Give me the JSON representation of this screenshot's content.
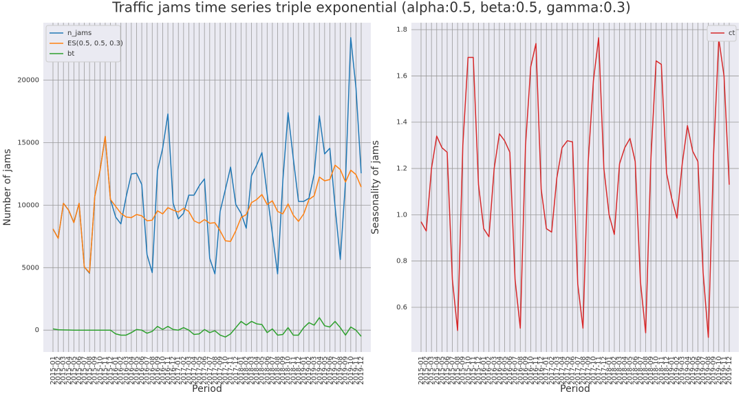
{
  "title": "Traffic jams time series triple exponential (alpha:0.5, beta:0.5, gamma:0.3)",
  "chart_data": [
    {
      "type": "line",
      "xlabel": "Period",
      "ylabel": "Number of jams",
      "legend": "upper left",
      "grid": true,
      "categories": [
        "2015-01",
        "2015-02",
        "2015-03",
        "2015-04",
        "2015-05",
        "2015-06",
        "2015-07",
        "2015-08",
        "2015-09",
        "2015-10",
        "2015-11",
        "2015-12",
        "2016-01",
        "2016-02",
        "2016-03",
        "2016-04",
        "2016-05",
        "2016-06",
        "2016-07",
        "2016-08",
        "2016-09",
        "2016-10",
        "2016-11",
        "2016-12",
        "2017-01",
        "2017-02",
        "2017-03",
        "2017-04",
        "2017-05",
        "2017-06",
        "2017-07",
        "2017-08",
        "2017-09",
        "2017-10",
        "2017-11",
        "2017-12",
        "2018-01",
        "2018-02",
        "2018-03",
        "2018-04",
        "2018-05",
        "2018-06",
        "2018-07",
        "2018-08",
        "2018-09",
        "2018-10",
        "2018-11",
        "2018-12",
        "2019-01",
        "2019-02",
        "2019-03",
        "2019-04",
        "2019-05",
        "2019-06",
        "2019-07",
        "2019-08",
        "2019-09",
        "2019-10",
        "2019-11",
        "2019-12"
      ],
      "ylim": [
        -1750,
        24600
      ],
      "yticks": [
        0,
        5000,
        10000,
        15000,
        20000
      ],
      "series": [
        {
          "name": "n_jams",
          "color": "#1f77b4",
          "values": [
            8100,
            7350,
            10150,
            9600,
            8600,
            10150,
            5050,
            4550,
            10700,
            12750,
            15500,
            10450,
            9050,
            8500,
            10650,
            12500,
            12550,
            11650,
            6050,
            4600,
            12750,
            14550,
            17300,
            10150,
            8900,
            9350,
            10800,
            10800,
            11550,
            12100,
            5750,
            4500,
            9500,
            11250,
            13050,
            10050,
            9350,
            8150,
            12350,
            13200,
            14200,
            10900,
            7700,
            4500,
            11950,
            17400,
            13750,
            10300,
            10300,
            10550,
            12500,
            17150,
            14100,
            14550,
            9900,
            5650,
            11900,
            23400,
            19400,
            12550
          ]
        },
        {
          "name": "ES(0.5, 0.5, 0.3)",
          "color": "#ff7f0e",
          "values": [
            8100,
            7350,
            10150,
            9600,
            8600,
            10150,
            5050,
            4600,
            10700,
            12750,
            15500,
            10450,
            9900,
            9350,
            9050,
            9000,
            9250,
            9150,
            8750,
            8800,
            9550,
            9300,
            9800,
            9600,
            9450,
            9750,
            9500,
            8750,
            8550,
            8850,
            8550,
            8600,
            7950,
            7150,
            7100,
            7950,
            9000,
            9250,
            10200,
            10450,
            10850,
            10050,
            10350,
            9500,
            9300,
            10100,
            9200,
            8700,
            9300,
            10450,
            10750,
            12250,
            11950,
            12050,
            13200,
            12850,
            11850,
            12800,
            12450,
            11450
          ]
        },
        {
          "name": "bt",
          "color": "#2ca02c",
          "values": [
            100,
            30,
            20,
            10,
            0,
            0,
            0,
            0,
            0,
            0,
            0,
            0,
            -300,
            -400,
            -400,
            -200,
            50,
            0,
            -250,
            -100,
            300,
            50,
            300,
            50,
            0,
            200,
            0,
            -350,
            -300,
            50,
            -200,
            -50,
            -400,
            -550,
            -300,
            200,
            700,
            400,
            700,
            500,
            450,
            -200,
            100,
            -400,
            -350,
            200,
            -400,
            -400,
            200,
            600,
            400,
            1000,
            350,
            250,
            700,
            200,
            -400,
            250,
            0,
            -500
          ]
        }
      ]
    },
    {
      "type": "line",
      "xlabel": "Period",
      "ylabel": "Seasonality of jams",
      "legend": "upper right",
      "grid": true,
      "categories": [
        "2015-01",
        "2015-02",
        "2015-03",
        "2015-04",
        "2015-05",
        "2015-06",
        "2015-07",
        "2015-08",
        "2015-09",
        "2015-10",
        "2015-11",
        "2015-12",
        "2016-01",
        "2016-02",
        "2016-03",
        "2016-04",
        "2016-05",
        "2016-06",
        "2016-07",
        "2016-08",
        "2016-09",
        "2016-10",
        "2016-11",
        "2016-12",
        "2017-01",
        "2017-02",
        "2017-03",
        "2017-04",
        "2017-05",
        "2017-06",
        "2017-07",
        "2017-08",
        "2017-09",
        "2017-10",
        "2017-11",
        "2017-12",
        "2018-01",
        "2018-02",
        "2018-03",
        "2018-04",
        "2018-05",
        "2018-06",
        "2018-07",
        "2018-08",
        "2018-09",
        "2018-10",
        "2018-11",
        "2018-12",
        "2019-01",
        "2019-02",
        "2019-03",
        "2019-04",
        "2019-05",
        "2019-06",
        "2019-07",
        "2019-08",
        "2019-09",
        "2019-10",
        "2019-11",
        "2019-12"
      ],
      "ylim": [
        0.407,
        1.83
      ],
      "yticks": [
        0.6,
        0.8,
        {
          "value": 1,
          "label": "1.0"
        },
        1.2,
        1.4,
        1.6,
        1.8
      ],
      "series": [
        {
          "name": "ct",
          "color": "#d62728",
          "values": [
            0.97,
            0.93,
            1.2,
            1.34,
            1.29,
            1.27,
            0.72,
            0.5,
            1.3,
            1.68,
            1.68,
            1.13,
            0.94,
            0.905,
            1.2,
            1.35,
            1.32,
            1.27,
            0.72,
            0.51,
            1.3,
            1.64,
            1.74,
            1.11,
            0.94,
            0.925,
            1.16,
            1.29,
            1.32,
            1.315,
            0.7,
            0.51,
            1.23,
            1.58,
            1.765,
            1.2,
            1.0,
            0.915,
            1.22,
            1.29,
            1.33,
            1.23,
            0.71,
            0.49,
            1.24,
            1.665,
            1.65,
            1.18,
            1.07,
            0.985,
            1.22,
            1.385,
            1.275,
            1.23,
            0.75,
            0.47,
            1.26,
            1.76,
            1.6,
            1.13
          ]
        }
      ]
    }
  ]
}
